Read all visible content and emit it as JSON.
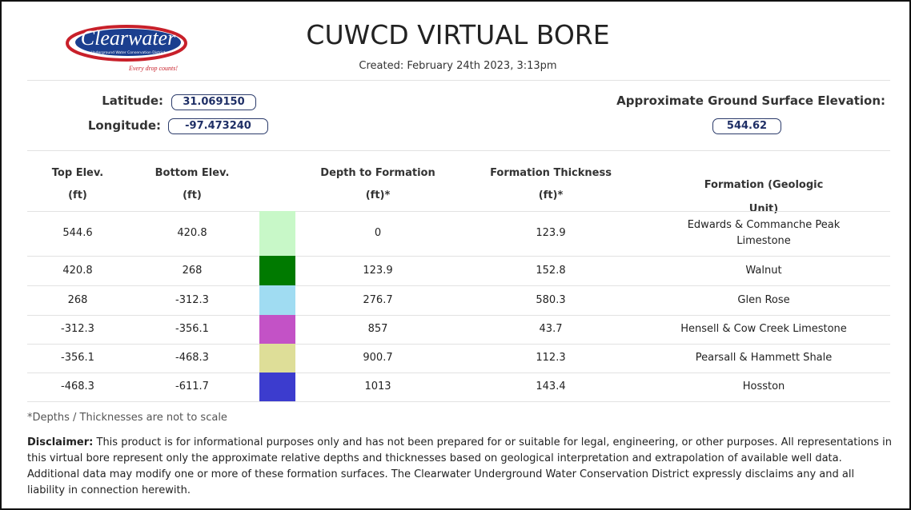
{
  "header": {
    "logo": {
      "name": "Clearwater",
      "subtitle": "Underground Water Conservation District",
      "tagline": "Every drop counts!"
    },
    "title": "CUWCD VIRTUAL BORE",
    "created": "Created: February 24th 2023, 3:13pm"
  },
  "location": {
    "latitude_label": "Latitude:",
    "latitude": "31.069150",
    "longitude_label": "Longitude:",
    "longitude": "-97.473240",
    "elevation_label": "Approximate Ground Surface Elevation:",
    "elevation": "544.62"
  },
  "table": {
    "headers": [
      [
        "Top Elev.",
        "(ft)"
      ],
      [
        "Bottom Elev.",
        "(ft)"
      ],
      [
        "Depth to Formation",
        "(ft)*"
      ],
      [
        "Formation Thickness",
        "(ft)*"
      ],
      [
        "Formation (Geologic Unit)"
      ]
    ],
    "rows": [
      {
        "top": "544.6",
        "bottom": "420.8",
        "color": "#c8f8c8",
        "depth": "0",
        "thickness": "123.9",
        "formation": [
          "Edwards & Commanche Peak",
          "Limestone"
        ]
      },
      {
        "top": "420.8",
        "bottom": "268",
        "color": "#007a00",
        "depth": "123.9",
        "thickness": "152.8",
        "formation": [
          "Walnut"
        ]
      },
      {
        "top": "268",
        "bottom": "-312.3",
        "color": "#a0dcf2",
        "depth": "276.7",
        "thickness": "580.3",
        "formation": [
          "Glen Rose"
        ]
      },
      {
        "top": "-312.3",
        "bottom": "-356.1",
        "color": "#c352c6",
        "depth": "857",
        "thickness": "43.7",
        "formation": [
          "Hensell & Cow Creek Limestone"
        ]
      },
      {
        "top": "-356.1",
        "bottom": "-468.3",
        "color": "#dede98",
        "depth": "900.7",
        "thickness": "112.3",
        "formation": [
          "Pearsall & Hammett Shale"
        ]
      },
      {
        "top": "-468.3",
        "bottom": "-611.7",
        "color": "#3c3cce",
        "depth": "1013",
        "thickness": "143.4",
        "formation": [
          "Hosston"
        ]
      }
    ]
  },
  "footnote": "*Depths / Thicknesses are not to scale",
  "disclaimer": {
    "label": "Disclaimer:",
    "text": "This product is for informational purposes only and has not been prepared for or suitable for legal, engineering, or other purposes. All representations in this virtual bore represent only the approximate relative depths and thicknesses based on geological interpretation and extrapolation of available well data. Additional data may modify one or more of these formation surfaces. The Clearwater Underground Water Conservation District expressly disclaims any and all liability in connection herewith."
  }
}
